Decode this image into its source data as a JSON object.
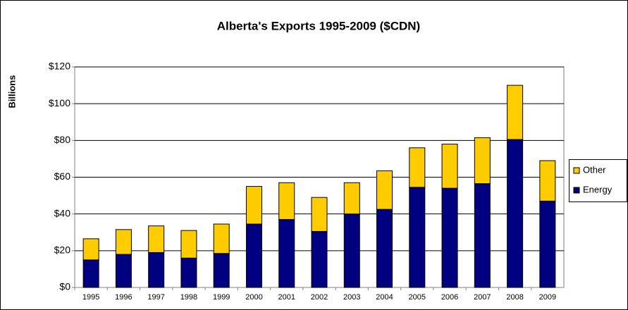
{
  "chart_data": {
    "type": "stacked_bar",
    "title": "Alberta's Exports 1995-2009 ($CDN)",
    "y_label": "Billions",
    "categories": [
      "1995",
      "1996",
      "1997",
      "1998",
      "1999",
      "2000",
      "2001",
      "2002",
      "2003",
      "2004",
      "2005",
      "2006",
      "2007",
      "2008",
      "2009"
    ],
    "series": [
      {
        "name": "Energy",
        "color": "#000080",
        "values": [
          15,
          18,
          19,
          16,
          18.5,
          34.5,
          37,
          30.5,
          40,
          42.5,
          54.5,
          54,
          56.5,
          80.5,
          47
        ]
      },
      {
        "name": "Other",
        "color": "#ffcc00",
        "values": [
          11.5,
          13.5,
          14.5,
          15,
          16,
          20.5,
          20,
          18.5,
          17,
          21,
          21.5,
          24,
          25,
          29.5,
          22
        ]
      }
    ],
    "ylim": [
      0,
      120
    ],
    "yticks": [
      {
        "value": 0,
        "label": "$0"
      },
      {
        "value": 20,
        "label": "$20"
      },
      {
        "value": 40,
        "label": "$40"
      },
      {
        "value": 60,
        "label": "$60"
      },
      {
        "value": 80,
        "label": "$80"
      },
      {
        "value": 100,
        "label": "$100"
      },
      {
        "value": 120,
        "label": "$120"
      }
    ],
    "grid": true,
    "legend": "right"
  }
}
